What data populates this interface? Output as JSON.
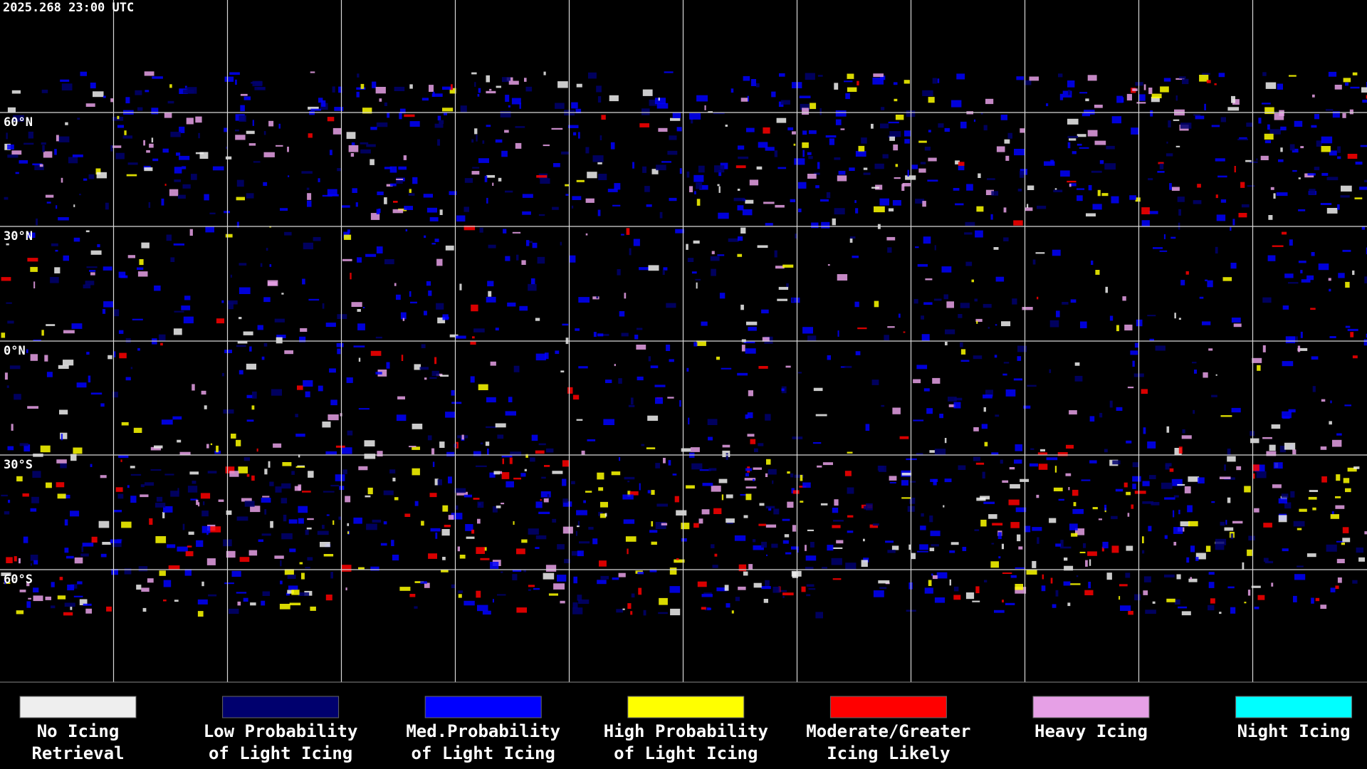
{
  "header": {
    "timestamp": "2025.268 23:00 UTC"
  },
  "map": {
    "latitude_labels": [
      "60°N",
      "30°N",
      "0°N",
      "30°S",
      "60°S"
    ]
  },
  "legend": [
    {
      "label_lines": [
        "No Icing",
        "Retrieval"
      ],
      "color": "#eeeeee"
    },
    {
      "label_lines": [
        "Low Probability",
        "of Light Icing"
      ],
      "color": "#00006e"
    },
    {
      "label_lines": [
        "Med.Probability",
        "of Light Icing"
      ],
      "color": "#0000ff"
    },
    {
      "label_lines": [
        "High Probability",
        "of Light Icing"
      ],
      "color": "#ffff00"
    },
    {
      "label_lines": [
        "Moderate/Greater",
        "Icing Likely"
      ],
      "color": "#ff0000"
    },
    {
      "label_lines": [
        "Heavy Icing"
      ],
      "color": "#e6a0e6"
    },
    {
      "label_lines": [
        "Night Icing"
      ],
      "color": "#00ffff"
    }
  ]
}
